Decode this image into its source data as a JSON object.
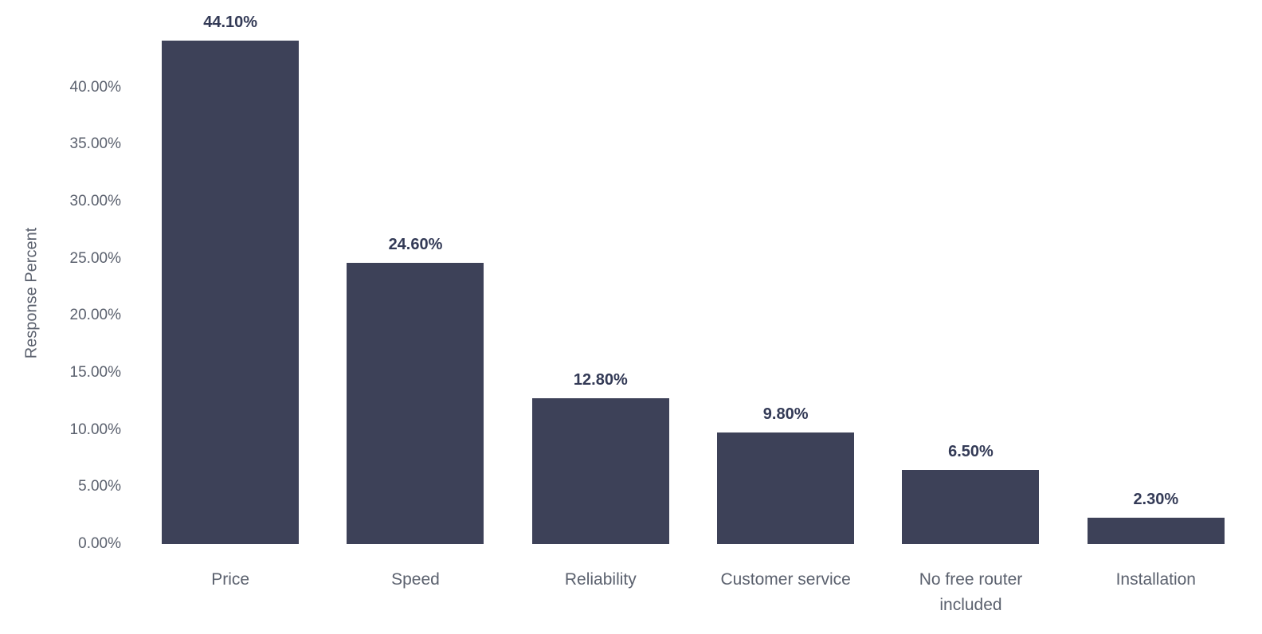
{
  "chart_data": {
    "type": "bar",
    "title": "",
    "xlabel": "",
    "ylabel": "Response Percent",
    "categories": [
      "Price",
      "Speed",
      "Reliability",
      "Customer service",
      "No free router included",
      "Installation"
    ],
    "values": [
      44.1,
      24.6,
      12.8,
      9.8,
      6.5,
      2.3
    ],
    "data_labels": [
      "44.10%",
      "24.60%",
      "12.80%",
      "9.80%",
      "6.50%",
      "2.30%"
    ],
    "yticks": [
      0,
      5,
      10,
      15,
      20,
      25,
      30,
      35,
      40
    ],
    "ytick_labels": [
      "0.00%",
      "5.00%",
      "10.00%",
      "15.00%",
      "20.00%",
      "25.00%",
      "30.00%",
      "35.00%",
      "40.00%"
    ],
    "ylim": [
      0,
      45
    ],
    "grid": false,
    "legend": "none",
    "colors": {
      "bar": "#3d4158",
      "data_label": "#333a56",
      "axis_text": "#5b616e",
      "background": "#ffffff"
    }
  }
}
